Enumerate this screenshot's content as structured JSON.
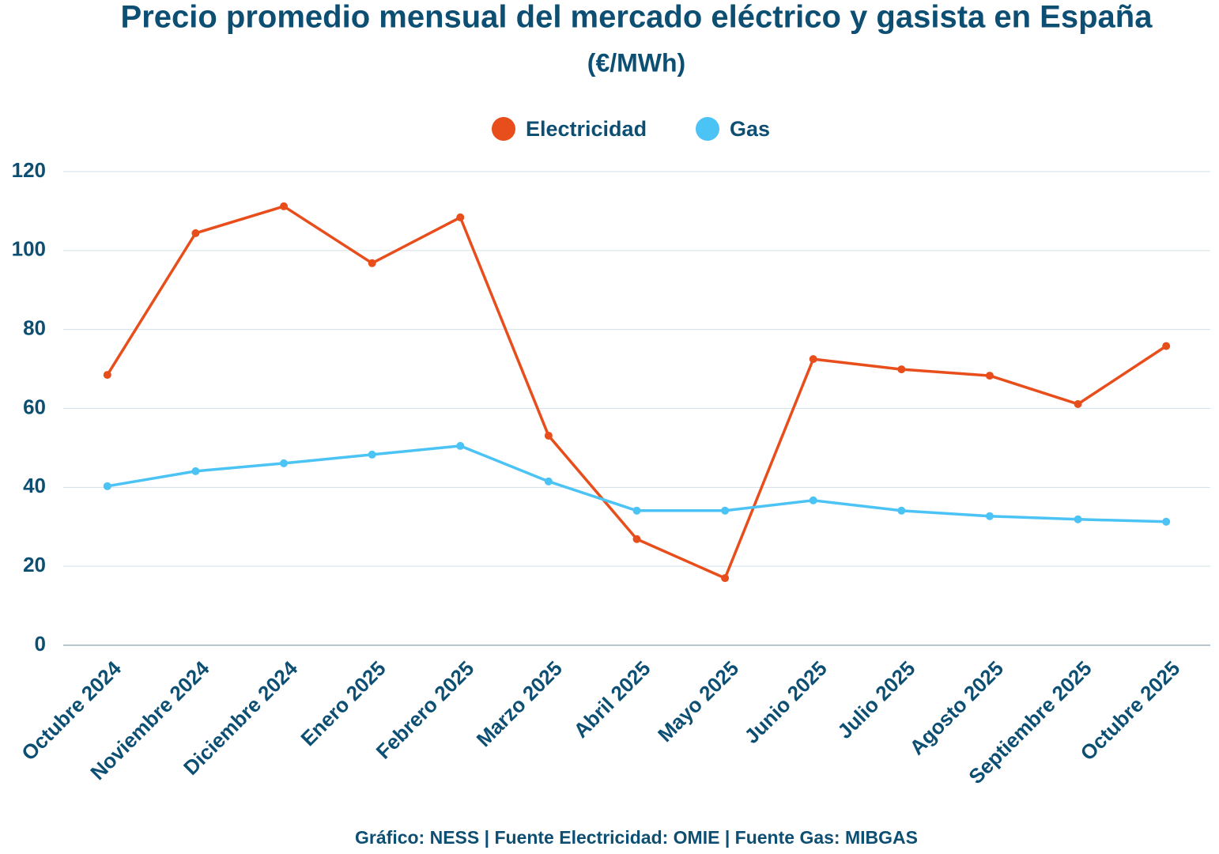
{
  "chart_data": {
    "type": "line",
    "title": "Precio promedio mensual del mercado eléctrico y gasista en España",
    "subtitle": "(€/MWh)",
    "source": "Gráfico: NESS | Fuente Electricidad: OMIE | Fuente Gas: MIBGAS",
    "categories": [
      "Octubre 2024",
      "Noviembre 2024",
      "Diciembre 2024",
      "Enero 2025",
      "Febrero 2025",
      "Marzo 2025",
      "Abril 2025",
      "Mayo 2025",
      "Junio 2025",
      "Julio 2025",
      "Agosto 2025",
      "Septiembre 2025",
      "Octubre 2025"
    ],
    "series": [
      {
        "name": "Electricidad",
        "color": "#e84e1b",
        "values": [
          68.5,
          104.4,
          111.2,
          96.8,
          108.4,
          53.1,
          26.9,
          17.0,
          72.5,
          69.9,
          68.3,
          61.1,
          75.8
        ]
      },
      {
        "name": "Gas",
        "color": "#4cc3f5",
        "values": [
          40.3,
          44.1,
          46.1,
          48.3,
          50.5,
          41.5,
          34.1,
          34.1,
          36.7,
          34.1,
          32.7,
          31.9,
          31.3
        ]
      }
    ],
    "ylim": [
      0,
      120
    ],
    "yticks": [
      0,
      20,
      40,
      60,
      80,
      100,
      120
    ],
    "grid": true
  }
}
